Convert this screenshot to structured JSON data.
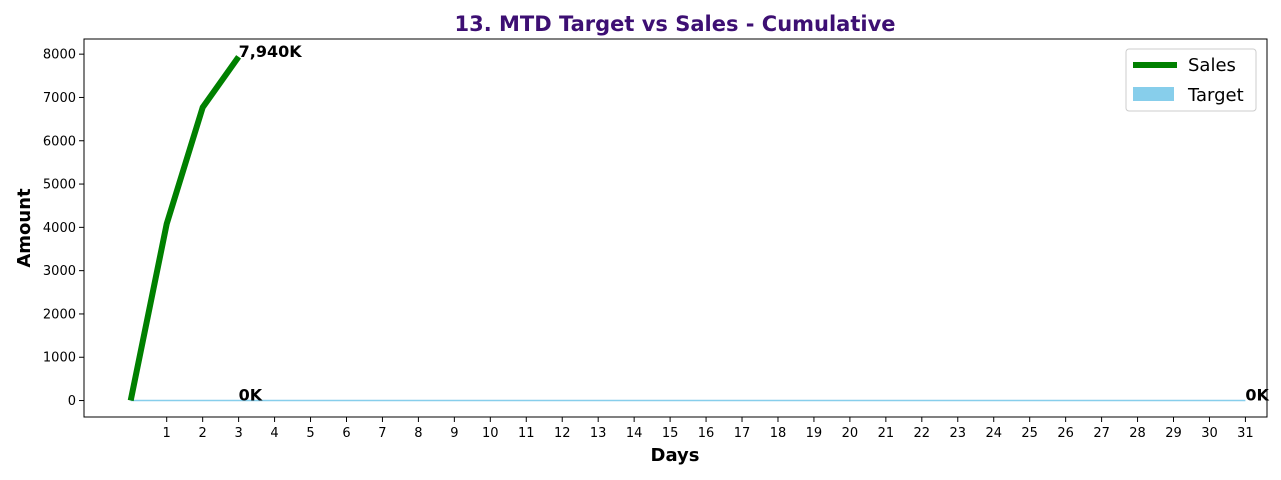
{
  "chart_data": {
    "type": "line",
    "title": "13. MTD Target vs Sales - Cumulative",
    "title_color": "#3d0f73",
    "xlabel": "Days",
    "ylabel": "Amount",
    "x_ticks": [
      "1",
      "2",
      "3",
      "4",
      "5",
      "6",
      "7",
      "8",
      "9",
      "10",
      "11",
      "12",
      "13",
      "14",
      "15",
      "16",
      "17",
      "18",
      "19",
      "20",
      "21",
      "22",
      "23",
      "24",
      "25",
      "26",
      "27",
      "28",
      "29",
      "30",
      "31"
    ],
    "y_ticks": [
      "0",
      "1000",
      "2000",
      "3000",
      "4000",
      "5000",
      "6000",
      "7000",
      "8000"
    ],
    "xlim": [
      -1.3,
      31.6
    ],
    "ylim": [
      -380,
      8350
    ],
    "legend_position": "top-right",
    "grid": false,
    "series": [
      {
        "name": "Sales",
        "color": "#008000",
        "x": [
          0,
          1,
          2,
          3
        ],
        "y": [
          0,
          4080,
          6770,
          7940
        ]
      },
      {
        "name": "Target",
        "color": "#87ceeb",
        "x": [
          0,
          31
        ],
        "y": [
          0,
          0
        ]
      }
    ],
    "annotations": [
      {
        "text": "7,940K",
        "x": 3,
        "y": 7940
      },
      {
        "text": "0K",
        "x": 3,
        "y": 0
      },
      {
        "text": "0K",
        "x": 31,
        "y": 0
      }
    ]
  }
}
